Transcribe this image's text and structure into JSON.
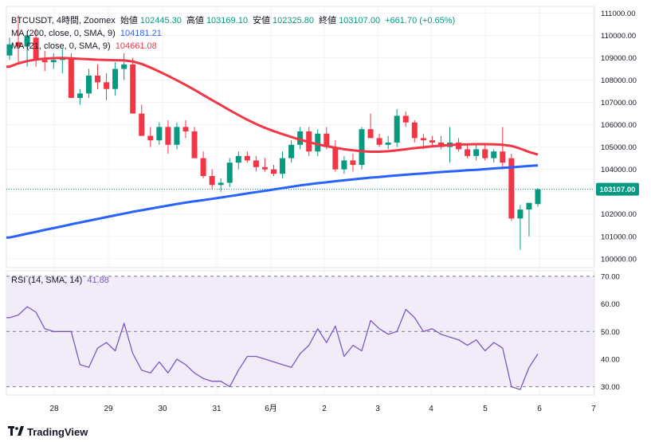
{
  "header": {
    "symbol": "BTCUSDT, 4時間, Zoomex",
    "open_label": "始値",
    "open": "102445.30",
    "high_label": "高値",
    "high": "103169.10",
    "low_label": "安値",
    "low": "102325.80",
    "close_label": "終値",
    "close": "103107.00",
    "change": "+661.70 (+0.65%)"
  },
  "indicators": {
    "ma200": {
      "label": "MA (200, close, 0, SMA, 9)",
      "value": "104181.21",
      "color": "#2962ff"
    },
    "ma21": {
      "label": "MA (21, close, 0, SMA, 9)",
      "value": "104661.08",
      "color": "#f23645"
    },
    "rsi": {
      "label": "RSI (14, SMA, 14)",
      "value": "41.88",
      "color": "#7e57c2"
    }
  },
  "brand": {
    "name": "TradingView",
    "logo_icon": "tradingview-logo-icon"
  },
  "colors": {
    "up": "#089981",
    "down": "#f23645",
    "ma200": "#2962ff",
    "ma21": "#f23645",
    "rsi": "#7e57c2",
    "rsi_band": "#ede7f6",
    "price_tag": "#089981"
  },
  "chart_data": [
    {
      "type": "candlestick",
      "ylim": [
        99600,
        111300
      ],
      "y_ticks": [
        "111000.00",
        "110000.00",
        "109000.00",
        "108000.00",
        "107000.00",
        "106000.00",
        "105000.00",
        "104000.00",
        "103000.00",
        "102000.00",
        "101000.00",
        "100000.00"
      ],
      "x_ticks": [
        "28",
        "29",
        "30",
        "31",
        "6月",
        "2",
        "3",
        "4",
        "5",
        "6",
        "7"
      ],
      "last_price": "103107.00",
      "candles": [
        {
          "o": 109100,
          "h": 109900,
          "l": 108900,
          "c": 109600
        },
        {
          "o": 109700,
          "h": 110900,
          "l": 108800,
          "c": 109500
        },
        {
          "o": 109500,
          "h": 110200,
          "l": 108600,
          "c": 110000
        },
        {
          "o": 109900,
          "h": 110300,
          "l": 108600,
          "c": 108900
        },
        {
          "o": 108900,
          "h": 109300,
          "l": 108400,
          "c": 108800
        },
        {
          "o": 108800,
          "h": 109200,
          "l": 108500,
          "c": 108900
        },
        {
          "o": 108900,
          "h": 109400,
          "l": 108300,
          "c": 109000
        },
        {
          "o": 109000,
          "h": 109200,
          "l": 107200,
          "c": 107200
        },
        {
          "o": 107200,
          "h": 107600,
          "l": 106900,
          "c": 107400
        },
        {
          "o": 107400,
          "h": 108500,
          "l": 107200,
          "c": 108200
        },
        {
          "o": 108200,
          "h": 108700,
          "l": 107600,
          "c": 107900
        },
        {
          "o": 107900,
          "h": 108300,
          "l": 107100,
          "c": 107600
        },
        {
          "o": 107600,
          "h": 108800,
          "l": 107300,
          "c": 108500
        },
        {
          "o": 108500,
          "h": 109200,
          "l": 108000,
          "c": 108700
        },
        {
          "o": 108700,
          "h": 109000,
          "l": 106500,
          "c": 106500
        },
        {
          "o": 106500,
          "h": 106900,
          "l": 105500,
          "c": 105500
        },
        {
          "o": 105500,
          "h": 105900,
          "l": 105000,
          "c": 105300
        },
        {
          "o": 105300,
          "h": 106100,
          "l": 105100,
          "c": 105900
        },
        {
          "o": 105900,
          "h": 106200,
          "l": 104700,
          "c": 105100
        },
        {
          "o": 105100,
          "h": 106100,
          "l": 104900,
          "c": 105900
        },
        {
          "o": 105900,
          "h": 106200,
          "l": 105400,
          "c": 105700
        },
        {
          "o": 105700,
          "h": 105900,
          "l": 104500,
          "c": 104500
        },
        {
          "o": 104500,
          "h": 104800,
          "l": 103600,
          "c": 103700
        },
        {
          "o": 103700,
          "h": 104000,
          "l": 103100,
          "c": 103300
        },
        {
          "o": 103300,
          "h": 103600,
          "l": 103000,
          "c": 103400
        },
        {
          "o": 103400,
          "h": 104500,
          "l": 103200,
          "c": 104300
        },
        {
          "o": 104300,
          "h": 104800,
          "l": 104000,
          "c": 104600
        },
        {
          "o": 104600,
          "h": 104800,
          "l": 104300,
          "c": 104400
        },
        {
          "o": 104400,
          "h": 104600,
          "l": 103900,
          "c": 104100
        },
        {
          "o": 104100,
          "h": 104500,
          "l": 103900,
          "c": 104000
        },
        {
          "o": 104000,
          "h": 104200,
          "l": 103700,
          "c": 103800
        },
        {
          "o": 103800,
          "h": 104800,
          "l": 103600,
          "c": 104500
        },
        {
          "o": 104500,
          "h": 105300,
          "l": 104300,
          "c": 105100
        },
        {
          "o": 105100,
          "h": 105900,
          "l": 104900,
          "c": 105700
        },
        {
          "o": 105700,
          "h": 105900,
          "l": 104600,
          "c": 104800
        },
        {
          "o": 104800,
          "h": 105800,
          "l": 104600,
          "c": 105600
        },
        {
          "o": 105600,
          "h": 105900,
          "l": 104900,
          "c": 105000
        },
        {
          "o": 105000,
          "h": 105300,
          "l": 103900,
          "c": 104000
        },
        {
          "o": 104000,
          "h": 104600,
          "l": 103800,
          "c": 104400
        },
        {
          "o": 104400,
          "h": 104700,
          "l": 103900,
          "c": 104200
        },
        {
          "o": 104200,
          "h": 105900,
          "l": 104000,
          "c": 105800
        },
        {
          "o": 105800,
          "h": 106500,
          "l": 105400,
          "c": 105400
        },
        {
          "o": 105400,
          "h": 105600,
          "l": 105000,
          "c": 105100
        },
        {
          "o": 105100,
          "h": 105500,
          "l": 104900,
          "c": 105200
        },
        {
          "o": 105200,
          "h": 106700,
          "l": 105000,
          "c": 106400
        },
        {
          "o": 106400,
          "h": 106600,
          "l": 105900,
          "c": 106100
        },
        {
          "o": 106100,
          "h": 106200,
          "l": 105200,
          "c": 105400
        },
        {
          "o": 105400,
          "h": 105600,
          "l": 104900,
          "c": 105300
        },
        {
          "o": 105300,
          "h": 105500,
          "l": 105000,
          "c": 105200
        },
        {
          "o": 105200,
          "h": 105500,
          "l": 104900,
          "c": 105000
        },
        {
          "o": 105000,
          "h": 105900,
          "l": 104300,
          "c": 105200
        },
        {
          "o": 105200,
          "h": 105400,
          "l": 104800,
          "c": 104900
        },
        {
          "o": 104900,
          "h": 105100,
          "l": 104500,
          "c": 104600
        },
        {
          "o": 104600,
          "h": 105100,
          "l": 104400,
          "c": 104900
        },
        {
          "o": 104900,
          "h": 105100,
          "l": 104400,
          "c": 104500
        },
        {
          "o": 104500,
          "h": 104900,
          "l": 104300,
          "c": 104800
        },
        {
          "o": 104800,
          "h": 105900,
          "l": 104000,
          "c": 104300
        },
        {
          "o": 104500,
          "h": 104700,
          "l": 101700,
          "c": 101800
        },
        {
          "o": 101800,
          "h": 102400,
          "l": 100400,
          "c": 102200
        },
        {
          "o": 102200,
          "h": 102500,
          "l": 101000,
          "c": 102500
        },
        {
          "o": 102445,
          "h": 103169,
          "l": 102326,
          "c": 103107
        }
      ],
      "ma21": [
        108600,
        108750,
        108850,
        108920,
        108960,
        108980,
        108990,
        108970,
        108950,
        108930,
        108910,
        108900,
        108890,
        108880,
        108830,
        108720,
        108560,
        108380,
        108190,
        107990,
        107780,
        107560,
        107330,
        107100,
        106880,
        106650,
        106430,
        106220,
        106030,
        105860,
        105710,
        105580,
        105450,
        105330,
        105220,
        105120,
        105040,
        104970,
        104900,
        104850,
        104810,
        104790,
        104790,
        104810,
        104850,
        104900,
        104950,
        104990,
        105030,
        105060,
        105090,
        105110,
        105120,
        105130,
        105130,
        105120,
        105100,
        105050,
        104930,
        104780,
        104661
      ],
      "ma200": [
        100950,
        101030,
        101120,
        101200,
        101290,
        101370,
        101450,
        101540,
        101620,
        101700,
        101780,
        101860,
        101940,
        102020,
        102100,
        102170,
        102240,
        102310,
        102380,
        102450,
        102510,
        102570,
        102620,
        102680,
        102740,
        102800,
        102860,
        102920,
        102980,
        103040,
        103100,
        103160,
        103220,
        103280,
        103330,
        103380,
        103420,
        103470,
        103510,
        103550,
        103590,
        103630,
        103660,
        103700,
        103730,
        103760,
        103790,
        103820,
        103850,
        103880,
        103910,
        103930,
        103960,
        103980,
        104010,
        104040,
        104070,
        104090,
        104120,
        104150,
        104181
      ]
    },
    {
      "type": "line",
      "name": "RSI",
      "ylim": [
        27,
        72
      ],
      "y_ticks": [
        "70.00",
        "60.00",
        "50.00",
        "40.00",
        "30.00"
      ],
      "levels": [
        70,
        50,
        30
      ],
      "values": [
        55,
        56,
        59,
        57,
        51,
        50,
        50,
        50,
        38,
        37,
        44,
        46,
        43,
        53,
        42,
        36,
        35,
        39,
        35,
        40,
        38,
        35,
        33,
        32,
        32,
        30,
        36,
        41,
        41,
        40,
        39,
        38,
        37,
        42,
        45,
        51,
        46,
        52,
        41,
        45,
        43,
        54,
        51,
        49,
        50,
        58,
        55,
        50,
        51,
        49,
        48,
        47,
        45,
        47,
        43,
        46,
        44,
        30,
        29,
        37,
        41.88
      ]
    }
  ]
}
